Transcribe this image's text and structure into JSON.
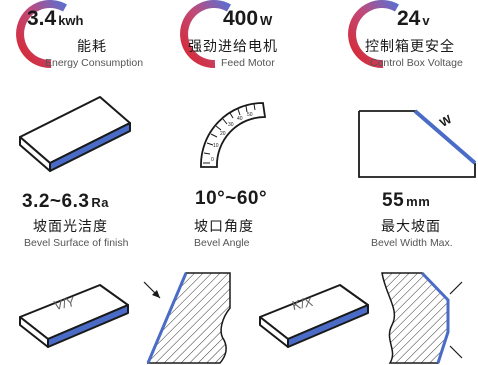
{
  "specs_top": [
    {
      "value": "3.4",
      "unit": "kwh",
      "cn": "能耗",
      "en": "Energy Consumption"
    },
    {
      "value": "400",
      "unit": "W",
      "cn": "强劲进给电机",
      "en": "Feed Motor"
    },
    {
      "value": "24",
      "unit": "v",
      "cn": "控制箱更安全",
      "en": "Control Box Voltage"
    }
  ],
  "specs_mid": [
    {
      "value": "3.2~6.3",
      "unit": "Ra",
      "cn": "坡面光洁度",
      "en": "Bevel Surface of finish"
    },
    {
      "value": "10°~60°",
      "unit": "",
      "cn": "坡口角度",
      "en": "Bevel Angle"
    },
    {
      "value": "55",
      "unit": "mm",
      "cn": "最大坡面",
      "en": "Bevel Width Max."
    }
  ],
  "diagram_labels": {
    "bevel_width_mark": "W",
    "vy_block": "V/Y",
    "kx_block": "K/X"
  },
  "colors": {
    "arc_red": "#d9262c",
    "arc_blue": "#5b6fd0",
    "bevel_blue": "#4a6cc7"
  }
}
